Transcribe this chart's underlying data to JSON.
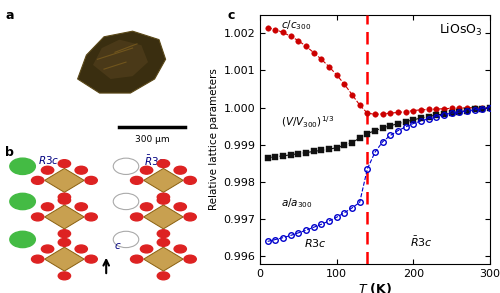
{
  "title_c": "LiOsO₃",
  "xlabel": "T (K)",
  "ylabel": "Relative lattice parameters",
  "xlim": [
    0,
    300
  ],
  "ylim": [
    0.9958,
    1.0025
  ],
  "yticks": [
    0.996,
    0.997,
    0.998,
    0.999,
    1.0,
    1.001,
    1.002
  ],
  "ytick_labels": [
    "0.996",
    "0.997",
    "0.998",
    "0.999",
    "1.000",
    "1.001",
    "1.002"
  ],
  "transition_T": 140,
  "c_over_c300": {
    "T": [
      10,
      20,
      30,
      40,
      50,
      60,
      70,
      80,
      90,
      100,
      110,
      120,
      130,
      140,
      150,
      160,
      170,
      180,
      190,
      200,
      210,
      220,
      230,
      240,
      250,
      260,
      270,
      280,
      290,
      300
    ],
    "val": [
      1.00215,
      1.0021,
      1.00202,
      1.00192,
      1.0018,
      1.00165,
      1.00148,
      1.0013,
      1.0011,
      1.00088,
      1.00063,
      1.00035,
      1.00007,
      0.99985,
      0.99982,
      0.99983,
      0.99985,
      0.99987,
      0.99989,
      0.99992,
      0.99994,
      0.99995,
      0.99996,
      0.99997,
      0.99998,
      0.99999,
      0.99999,
      1.0,
      1.0,
      1.0
    ]
  },
  "V_over_V300_cbrt": {
    "T": [
      10,
      20,
      30,
      40,
      50,
      60,
      70,
      80,
      90,
      100,
      110,
      120,
      130,
      140,
      150,
      160,
      170,
      180,
      190,
      200,
      210,
      220,
      230,
      240,
      250,
      260,
      270,
      280,
      290,
      300
    ],
    "val": [
      0.99865,
      0.99868,
      0.9987,
      0.99873,
      0.99876,
      0.99879,
      0.99882,
      0.99885,
      0.99888,
      0.99892,
      0.99898,
      0.99906,
      0.99918,
      0.9993,
      0.99938,
      0.99945,
      0.99951,
      0.99957,
      0.99962,
      0.99967,
      0.99972,
      0.99976,
      0.9998,
      0.99983,
      0.99986,
      0.99989,
      0.99992,
      0.99995,
      0.99997,
      1.0
    ]
  },
  "a_over_a300": {
    "T": [
      10,
      20,
      30,
      40,
      50,
      60,
      70,
      80,
      90,
      100,
      110,
      120,
      130,
      140,
      150,
      160,
      170,
      180,
      190,
      200,
      210,
      220,
      230,
      240,
      250,
      260,
      270,
      280,
      290,
      300
    ],
    "val": [
      0.9964,
      0.99645,
      0.9965,
      0.99656,
      0.99663,
      0.9967,
      0.99678,
      0.99686,
      0.99695,
      0.99705,
      0.99717,
      0.9973,
      0.99745,
      0.99835,
      0.9988,
      0.99908,
      0.99925,
      0.99938,
      0.99948,
      0.99957,
      0.99964,
      0.9997,
      0.99976,
      0.99981,
      0.99985,
      0.99988,
      0.99991,
      0.99994,
      0.99997,
      1.0
    ]
  },
  "color_c": "#cc0000",
  "color_V": "#111111",
  "color_a": "#0000cc",
  "bg_color": "#c8c8c8",
  "photo_bg": "#c0bdc0"
}
